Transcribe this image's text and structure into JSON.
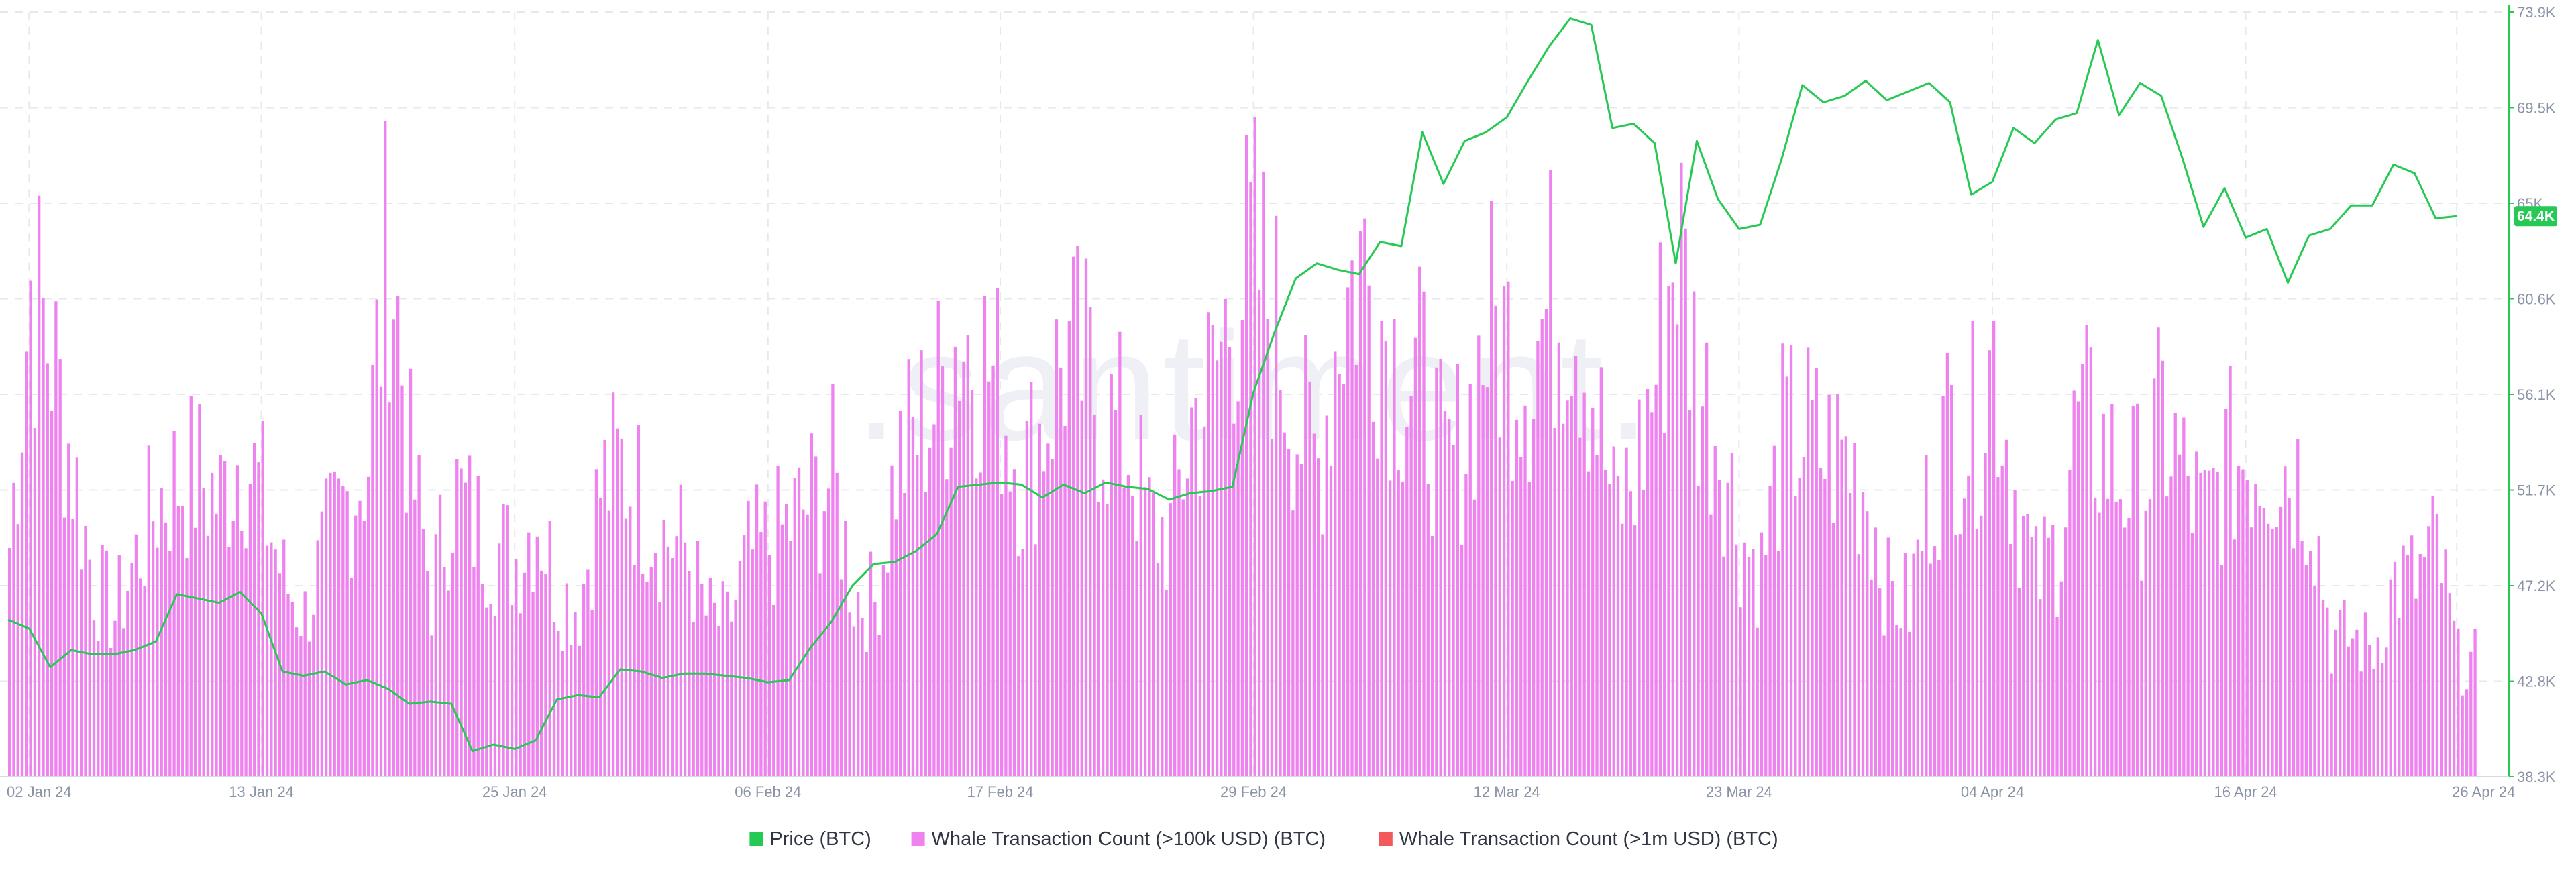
{
  "watermark": ".santiment.",
  "colors": {
    "price": "#26c953",
    "whale_100k": "#ee82ee",
    "whale_1m": "#f25a5a",
    "grid": "#e6e8ee",
    "axis_text": "#8a93a6"
  },
  "legend": [
    {
      "label": "Price (BTC)",
      "color": "#26c953"
    },
    {
      "label": "Whale Transaction Count (>100k USD) (BTC)",
      "color": "#ee82ee"
    },
    {
      "label": "Whale Transaction Count (>1m USD) (BTC)",
      "color": "#f25a5a"
    }
  ],
  "chart_data": {
    "type": "bar",
    "x_ticks": [
      "02 Jan 24",
      "13 Jan 24",
      "25 Jan 24",
      "06 Feb 24",
      "17 Feb 24",
      "29 Feb 24",
      "12 Mar 24",
      "23 Mar 24",
      "04 Apr 24",
      "16 Apr 24",
      "26 Apr 24"
    ],
    "y_right_ticks": [
      "73.9K",
      "69.5K",
      "65K",
      "60.6K",
      "56.1K",
      "51.7K",
      "47.2K",
      "42.8K",
      "38.3K"
    ],
    "price_ylim": [
      38300,
      73900
    ],
    "grid": true,
    "legend_position": "bottom-center",
    "current_price_label": "64.4K",
    "series": [
      {
        "name": "Price (BTC)",
        "kind": "line",
        "points": [
          [
            "01 Jan 24",
            45600
          ],
          [
            "02 Jan 24",
            45200
          ],
          [
            "03 Jan 24",
            43400
          ],
          [
            "04 Jan 24",
            44200
          ],
          [
            "05 Jan 24",
            44000
          ],
          [
            "06 Jan 24",
            44000
          ],
          [
            "07 Jan 24",
            44200
          ],
          [
            "08 Jan 24",
            44600
          ],
          [
            "09 Jan 24",
            46800
          ],
          [
            "10 Jan 24",
            46600
          ],
          [
            "11 Jan 24",
            46400
          ],
          [
            "12 Jan 24",
            46900
          ],
          [
            "13 Jan 24",
            45900
          ],
          [
            "14 Jan 24",
            43200
          ],
          [
            "15 Jan 24",
            43000
          ],
          [
            "16 Jan 24",
            43200
          ],
          [
            "17 Jan 24",
            42600
          ],
          [
            "18 Jan 24",
            42800
          ],
          [
            "19 Jan 24",
            42400
          ],
          [
            "20 Jan 24",
            41700
          ],
          [
            "21 Jan 24",
            41800
          ],
          [
            "22 Jan 24",
            41700
          ],
          [
            "23 Jan 24",
            39500
          ],
          [
            "24 Jan 24",
            39800
          ],
          [
            "25 Jan 24",
            39600
          ],
          [
            "26 Jan 24",
            40000
          ],
          [
            "27 Jan 24",
            41900
          ],
          [
            "28 Jan 24",
            42100
          ],
          [
            "29 Jan 24",
            42000
          ],
          [
            "30 Jan 24",
            43300
          ],
          [
            "31 Jan 24",
            43200
          ],
          [
            "01 Feb 24",
            42900
          ],
          [
            "02 Feb 24",
            43100
          ],
          [
            "03 Feb 24",
            43100
          ],
          [
            "04 Feb 24",
            43000
          ],
          [
            "05 Feb 24",
            42900
          ],
          [
            "06 Feb 24",
            42700
          ],
          [
            "07 Feb 24",
            42800
          ],
          [
            "08 Feb 24",
            44300
          ],
          [
            "09 Feb 24",
            45500
          ],
          [
            "10 Feb 24",
            47200
          ],
          [
            "11 Feb 24",
            48200
          ],
          [
            "12 Feb 24",
            48300
          ],
          [
            "13 Feb 24",
            48800
          ],
          [
            "14 Feb 24",
            49600
          ],
          [
            "15 Feb 24",
            51800
          ],
          [
            "16 Feb 24",
            51900
          ],
          [
            "17 Feb 24",
            52000
          ],
          [
            "18 Feb 24",
            51900
          ],
          [
            "19 Feb 24",
            51300
          ],
          [
            "20 Feb 24",
            51900
          ],
          [
            "21 Feb 24",
            51500
          ],
          [
            "22 Feb 24",
            52000
          ],
          [
            "23 Feb 24",
            51800
          ],
          [
            "24 Feb 24",
            51700
          ],
          [
            "25 Feb 24",
            51200
          ],
          [
            "26 Feb 24",
            51500
          ],
          [
            "27 Feb 24",
            51600
          ],
          [
            "28 Feb 24",
            51800
          ],
          [
            "29 Feb 24",
            56200
          ],
          [
            "01 Mar 24",
            59000
          ],
          [
            "02 Mar 24",
            61500
          ],
          [
            "03 Mar 24",
            62200
          ],
          [
            "04 Mar 24",
            61900
          ],
          [
            "05 Mar 24",
            61700
          ],
          [
            "06 Mar 24",
            63200
          ],
          [
            "07 Mar 24",
            63000
          ],
          [
            "08 Mar 24",
            68300
          ],
          [
            "09 Mar 24",
            65900
          ],
          [
            "10 Mar 24",
            67900
          ],
          [
            "11 Mar 24",
            68300
          ],
          [
            "12 Mar 24",
            69000
          ],
          [
            "13 Mar 24",
            70700
          ],
          [
            "14 Mar 24",
            72300
          ],
          [
            "15 Mar 24",
            73600
          ],
          [
            "16 Mar 24",
            73300
          ],
          [
            "17 Mar 24",
            68500
          ],
          [
            "18 Mar 24",
            68700
          ],
          [
            "19 Mar 24",
            67800
          ],
          [
            "20 Mar 24",
            62200
          ],
          [
            "21 Mar 24",
            67900
          ],
          [
            "22 Mar 24",
            65200
          ],
          [
            "23 Mar 24",
            63800
          ],
          [
            "24 Mar 24",
            64000
          ],
          [
            "25 Mar 24",
            67000
          ],
          [
            "26 Mar 24",
            70500
          ],
          [
            "27 Mar 24",
            69700
          ],
          [
            "28 Mar 24",
            70000
          ],
          [
            "29 Mar 24",
            70700
          ],
          [
            "30 Mar 24",
            69800
          ],
          [
            "31 Mar 24",
            70200
          ],
          [
            "01 Apr 24",
            70600
          ],
          [
            "02 Apr 24",
            69700
          ],
          [
            "03 Apr 24",
            65400
          ],
          [
            "04 Apr 24",
            66000
          ],
          [
            "05 Apr 24",
            68500
          ],
          [
            "06 Apr 24",
            67800
          ],
          [
            "07 Apr 24",
            68900
          ],
          [
            "08 Apr 24",
            69200
          ],
          [
            "09 Apr 24",
            72600
          ],
          [
            "10 Apr 24",
            69100
          ],
          [
            "11 Apr 24",
            70600
          ],
          [
            "12 Apr 24",
            70000
          ],
          [
            "13 Apr 24",
            67100
          ],
          [
            "14 Apr 24",
            63900
          ],
          [
            "15 Apr 24",
            65700
          ],
          [
            "16 Apr 24",
            63400
          ],
          [
            "17 Apr 24",
            63800
          ],
          [
            "18 Apr 24",
            61300
          ],
          [
            "19 Apr 24",
            63500
          ],
          [
            "20 Apr 24",
            63800
          ],
          [
            "21 Apr 24",
            64900
          ],
          [
            "22 Apr 24",
            64900
          ],
          [
            "23 Apr 24",
            66800
          ],
          [
            "24 Apr 24",
            66400
          ],
          [
            "25 Apr 24",
            64300
          ],
          [
            "26 Apr 24",
            64400
          ]
        ]
      },
      {
        "name": "Whale Transaction Count (>100k USD) (BTC)",
        "kind": "bar",
        "daily_peak": [
          [
            "01 Jan 24",
            190
          ],
          [
            "02 Jan 24",
            420
          ],
          [
            "03 Jan 24",
            360
          ],
          [
            "04 Jan 24",
            260
          ],
          [
            "05 Jan 24",
            160
          ],
          [
            "06 Jan 24",
            130
          ],
          [
            "07 Jan 24",
            180
          ],
          [
            "08 Jan 24",
            230
          ],
          [
            "09 Jan 24",
            250
          ],
          [
            "10 Jan 24",
            250
          ],
          [
            "11 Jan 24",
            230
          ],
          [
            "12 Jan 24",
            280
          ],
          [
            "13 Jan 24",
            230
          ],
          [
            "14 Jan 24",
            160
          ],
          [
            "15 Jan 24",
            130
          ],
          [
            "16 Jan 24",
            190
          ],
          [
            "17 Jan 24",
            230
          ],
          [
            "18 Jan 24",
            270
          ],
          [
            "19 Jan 24",
            470
          ],
          [
            "20 Jan 24",
            260
          ],
          [
            "21 Jan 24",
            150
          ],
          [
            "22 Jan 24",
            240
          ],
          [
            "23 Jan 24",
            210
          ],
          [
            "24 Jan 24",
            190
          ],
          [
            "25 Jan 24",
            180
          ],
          [
            "26 Jan 24",
            220
          ],
          [
            "27 Jan 24",
            150
          ],
          [
            "28 Jan 24",
            140
          ],
          [
            "29 Jan 24",
            240
          ],
          [
            "30 Jan 24",
            260
          ],
          [
            "31 Jan 24",
            230
          ],
          [
            "01 Feb 24",
            200
          ],
          [
            "02 Feb 24",
            190
          ],
          [
            "03 Feb 24",
            130
          ],
          [
            "04 Feb 24",
            120
          ],
          [
            "05 Feb 24",
            180
          ],
          [
            "06 Feb 24",
            190
          ],
          [
            "07 Feb 24",
            210
          ],
          [
            "08 Feb 24",
            230
          ],
          [
            "09 Feb 24",
            250
          ],
          [
            "10 Feb 24",
            150
          ],
          [
            "11 Feb 24",
            140
          ],
          [
            "12 Feb 24",
            260
          ],
          [
            "13 Feb 24",
            290
          ],
          [
            "14 Feb 24",
            320
          ],
          [
            "15 Feb 24",
            380
          ],
          [
            "16 Feb 24",
            360
          ],
          [
            "17 Feb 24",
            320
          ],
          [
            "18 Feb 24",
            250
          ],
          [
            "19 Feb 24",
            300
          ],
          [
            "20 Feb 24",
            360
          ],
          [
            "21 Feb 24",
            340
          ],
          [
            "22 Feb 24",
            300
          ],
          [
            "23 Feb 24",
            280
          ],
          [
            "24 Feb 24",
            210
          ],
          [
            "25 Feb 24",
            200
          ],
          [
            "26 Feb 24",
            300
          ],
          [
            "27 Feb 24",
            330
          ],
          [
            "28 Feb 24",
            410
          ],
          [
            "29 Feb 24",
            440
          ],
          [
            "01 Mar 24",
            380
          ],
          [
            "02 Mar 24",
            300
          ],
          [
            "03 Mar 24",
            260
          ],
          [
            "04 Mar 24",
            390
          ],
          [
            "05 Mar 24",
            440
          ],
          [
            "06 Mar 24",
            390
          ],
          [
            "07 Mar 24",
            340
          ],
          [
            "08 Mar 24",
            330
          ],
          [
            "09 Mar 24",
            250
          ],
          [
            "10 Mar 24",
            290
          ],
          [
            "11 Mar 24",
            380
          ],
          [
            "12 Mar 24",
            370
          ],
          [
            "13 Mar 24",
            350
          ],
          [
            "14 Mar 24",
            400
          ],
          [
            "15 Mar 24",
            420
          ],
          [
            "16 Mar 24",
            330
          ],
          [
            "17 Mar 24",
            220
          ],
          [
            "18 Mar 24",
            250
          ],
          [
            "19 Mar 24",
            340
          ],
          [
            "20 Mar 24",
            470
          ],
          [
            "21 Mar 24",
            330
          ],
          [
            "22 Mar 24",
            290
          ],
          [
            "23 Mar 24",
            200
          ],
          [
            "24 Mar 24",
            170
          ],
          [
            "25 Mar 24",
            280
          ],
          [
            "26 Mar 24",
            290
          ],
          [
            "27 Mar 24",
            270
          ],
          [
            "28 Mar 24",
            270
          ],
          [
            "29 Mar 24",
            240
          ],
          [
            "30 Mar 24",
            150
          ],
          [
            "31 Mar 24",
            140
          ],
          [
            "01 Apr 24",
            240
          ],
          [
            "02 Apr 24",
            300
          ],
          [
            "03 Apr 24",
            290
          ],
          [
            "04 Apr 24",
            360
          ],
          [
            "05 Apr 24",
            240
          ],
          [
            "06 Apr 24",
            160
          ],
          [
            "07 Apr 24",
            190
          ],
          [
            "08 Apr 24",
            300
          ],
          [
            "09 Apr 24",
            280
          ],
          [
            "10 Apr 24",
            250
          ],
          [
            "11 Apr 24",
            240
          ],
          [
            "12 Apr 24",
            300
          ],
          [
            "13 Apr 24",
            250
          ],
          [
            "14 Apr 24",
            210
          ],
          [
            "15 Apr 24",
            260
          ],
          [
            "16 Apr 24",
            270
          ],
          [
            "17 Apr 24",
            270
          ],
          [
            "18 Apr 24",
            260
          ],
          [
            "19 Apr 24",
            240
          ],
          [
            "20 Apr 24",
            110
          ],
          [
            "21 Apr 24",
            110
          ],
          [
            "22 Apr 24",
            100
          ],
          [
            "23 Apr 24",
            160
          ],
          [
            "24 Apr 24",
            160
          ],
          [
            "25 Apr 24",
            190
          ],
          [
            "26 Apr 24",
            90
          ]
        ]
      },
      {
        "name": "Whale Transaction Count (>1m USD) (BTC)",
        "kind": "bar",
        "points": []
      }
    ]
  }
}
